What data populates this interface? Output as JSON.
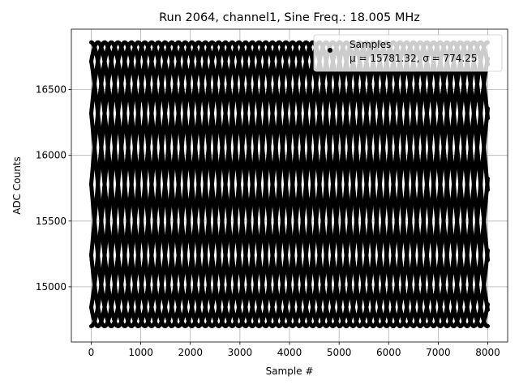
{
  "chart_data": {
    "type": "scatter",
    "title": "Run 2064, channel1, Sine Freq.: 18.005 MHz",
    "xlabel": "Sample #",
    "ylabel": "ADC Counts",
    "xlim": [
      -400,
      8400
    ],
    "ylim": [
      14580,
      16960
    ],
    "x_ticks": [
      0,
      1000,
      2000,
      3000,
      4000,
      5000,
      6000,
      7000,
      8000
    ],
    "y_ticks": [
      15000,
      15500,
      16000,
      16500
    ],
    "grid": true,
    "legend_position": "top-right",
    "series": [
      {
        "name": "Samples",
        "color": "#000000",
        "marker": "circle",
        "n_samples": 8000,
        "x_range": [
          0,
          8000
        ],
        "y_min": 14700,
        "y_max": 16860
      }
    ],
    "legend": {
      "entry_label": "Samples",
      "stats_label": "μ = 15781.32, σ = 774.25"
    }
  }
}
